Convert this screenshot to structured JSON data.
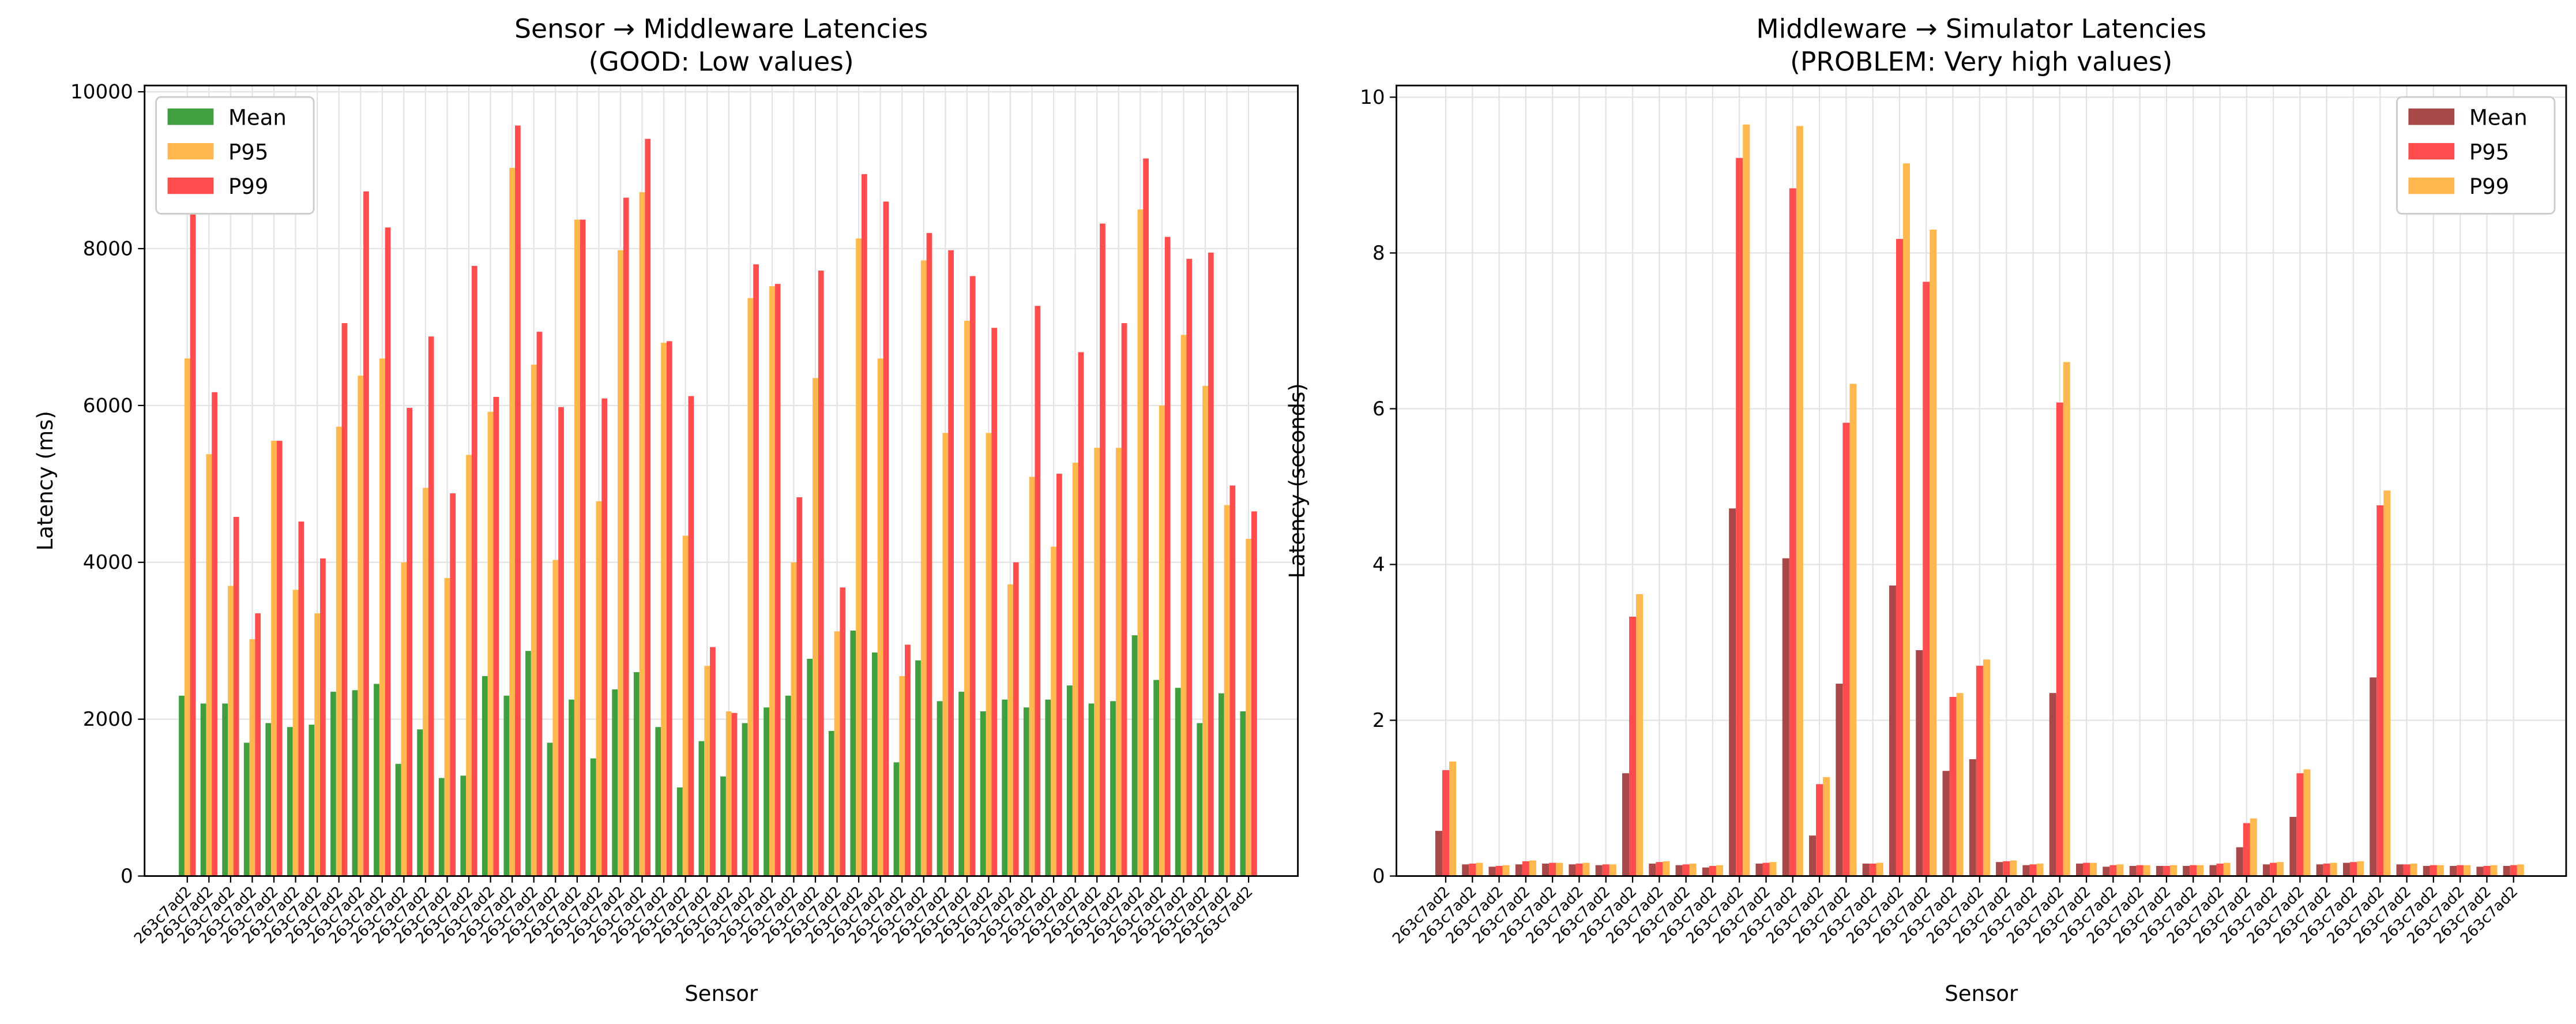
{
  "chart_data": [
    {
      "type": "bar",
      "title": "Sensor → Middleware Latencies",
      "subtitle": "(GOOD: Low values)",
      "x_label": "Sensor",
      "y_label": "Latency (ms)",
      "categories": [
        "263c7ad2",
        "263c7ad2",
        "263c7ad2",
        "263c7ad2",
        "263c7ad2",
        "263c7ad2",
        "263c7ad2",
        "263c7ad2",
        "263c7ad2",
        "263c7ad2",
        "263c7ad2",
        "263c7ad2",
        "263c7ad2",
        "263c7ad2",
        "263c7ad2",
        "263c7ad2",
        "263c7ad2",
        "263c7ad2",
        "263c7ad2",
        "263c7ad2",
        "263c7ad2",
        "263c7ad2",
        "263c7ad2",
        "263c7ad2",
        "263c7ad2",
        "263c7ad2",
        "263c7ad2",
        "263c7ad2",
        "263c7ad2",
        "263c7ad2",
        "263c7ad2",
        "263c7ad2",
        "263c7ad2",
        "263c7ad2",
        "263c7ad2",
        "263c7ad2",
        "263c7ad2",
        "263c7ad2",
        "263c7ad2",
        "263c7ad2",
        "263c7ad2",
        "263c7ad2",
        "263c7ad2",
        "263c7ad2",
        "263c7ad2",
        "263c7ad2",
        "263c7ad2",
        "263c7ad2",
        "263c7ad2",
        "263c7ad2"
      ],
      "series": [
        {
          "name": "Mean",
          "color": "#3f9f3f",
          "values": [
            2300,
            2200,
            2200,
            1700,
            1950,
            1900,
            1930,
            2350,
            2370,
            2450,
            1430,
            1870,
            1250,
            1280,
            2550,
            2300,
            2870,
            1700,
            2250,
            1500,
            2380,
            2600,
            1900,
            1130,
            1720,
            1270,
            1950,
            2150,
            2300,
            2770,
            1850,
            3130,
            2850,
            1450,
            2750,
            2230,
            2350,
            2100,
            2250,
            2150,
            2250,
            2430,
            2200,
            2230,
            3070,
            2500,
            2400,
            1950,
            2330,
            2100
          ]
        },
        {
          "name": "P95",
          "color": "#ffb84d",
          "values": [
            6600,
            5380,
            3700,
            3020,
            5550,
            3650,
            3350,
            5730,
            6380,
            6600,
            4000,
            4950,
            3800,
            5370,
            5920,
            9030,
            6520,
            4030,
            8370,
            4780,
            7980,
            8720,
            6800,
            4340,
            2680,
            2100,
            7370,
            7520,
            4000,
            6350,
            3120,
            8130,
            6600,
            2550,
            7850,
            5650,
            7080,
            5650,
            3720,
            5090,
            4200,
            5270,
            5460,
            5460,
            8500,
            6000,
            6900,
            6250,
            4730,
            4300
          ]
        },
        {
          "name": "P99",
          "color": "#ff4d4d",
          "values": [
            8700,
            6170,
            4580,
            3350,
            5550,
            4520,
            4050,
            7050,
            8730,
            8270,
            5970,
            6880,
            4880,
            7780,
            6110,
            9570,
            6940,
            5980,
            8370,
            6090,
            8650,
            9400,
            6820,
            6120,
            2920,
            2080,
            7800,
            7550,
            4830,
            7720,
            3680,
            8950,
            8600,
            2950,
            8200,
            7980,
            7650,
            6990,
            4000,
            7270,
            5130,
            6680,
            8320,
            7050,
            9150,
            8150,
            7870,
            7950,
            4980,
            4650
          ]
        }
      ],
      "ylim": [
        0,
        10080
      ],
      "yticks": [
        0,
        2000,
        4000,
        6000,
        8000,
        10000
      ],
      "grid": true,
      "legend": "upper left"
    },
    {
      "type": "bar",
      "title": "Middleware → Simulator Latencies",
      "subtitle": "(PROBLEM: Very high values)",
      "x_label": "Sensor",
      "y_label": "Latency (seconds)",
      "categories": [
        "263c7ad2",
        "263c7ad2",
        "263c7ad2",
        "263c7ad2",
        "263c7ad2",
        "263c7ad2",
        "263c7ad2",
        "263c7ad2",
        "263c7ad2",
        "263c7ad2",
        "263c7ad2",
        "263c7ad2",
        "263c7ad2",
        "263c7ad2",
        "263c7ad2",
        "263c7ad2",
        "263c7ad2",
        "263c7ad2",
        "263c7ad2",
        "263c7ad2",
        "263c7ad2",
        "263c7ad2",
        "263c7ad2",
        "263c7ad2",
        "263c7ad2",
        "263c7ad2",
        "263c7ad2",
        "263c7ad2",
        "263c7ad2",
        "263c7ad2",
        "263c7ad2",
        "263c7ad2",
        "263c7ad2",
        "263c7ad2",
        "263c7ad2",
        "263c7ad2",
        "263c7ad2",
        "263c7ad2",
        "263c7ad2",
        "263c7ad2",
        "263c7ad2"
      ],
      "series": [
        {
          "name": "Mean",
          "color": "#a84848",
          "values": [
            0.58,
            0.15,
            0.12,
            0.15,
            0.16,
            0.15,
            0.14,
            1.32,
            0.16,
            0.14,
            0.11,
            4.72,
            0.16,
            4.08,
            0.52,
            2.47,
            0.16,
            3.73,
            2.9,
            1.35,
            1.5,
            0.18,
            0.14,
            2.35,
            0.16,
            0.12,
            0.13,
            0.13,
            0.13,
            0.14,
            0.37,
            0.15,
            0.76,
            0.15,
            0.17,
            2.55,
            0.15,
            0.13,
            0.13,
            0.12,
            0.13
          ]
        },
        {
          "name": "P95",
          "color": "#ff4d4d",
          "values": [
            1.36,
            0.16,
            0.13,
            0.19,
            0.17,
            0.16,
            0.15,
            3.33,
            0.18,
            0.15,
            0.13,
            9.22,
            0.17,
            8.83,
            1.18,
            5.82,
            0.16,
            8.18,
            7.63,
            2.3,
            2.7,
            0.19,
            0.15,
            6.08,
            0.17,
            0.14,
            0.14,
            0.13,
            0.14,
            0.16,
            0.68,
            0.17,
            1.32,
            0.16,
            0.18,
            4.76,
            0.15,
            0.14,
            0.14,
            0.13,
            0.14
          ]
        },
        {
          "name": "P99",
          "color": "#ffb84d",
          "values": [
            1.47,
            0.17,
            0.14,
            0.2,
            0.17,
            0.17,
            0.15,
            3.62,
            0.19,
            0.16,
            0.14,
            9.65,
            0.18,
            9.63,
            1.27,
            6.32,
            0.17,
            9.15,
            8.3,
            2.35,
            2.78,
            0.2,
            0.16,
            6.6,
            0.17,
            0.15,
            0.14,
            0.14,
            0.14,
            0.17,
            0.74,
            0.18,
            1.37,
            0.17,
            0.19,
            4.95,
            0.16,
            0.14,
            0.14,
            0.14,
            0.15
          ]
        }
      ],
      "ylim": [
        0,
        10.15
      ],
      "yticks": [
        0,
        2,
        4,
        6,
        8,
        10
      ],
      "grid": true,
      "legend": "upper right"
    }
  ]
}
